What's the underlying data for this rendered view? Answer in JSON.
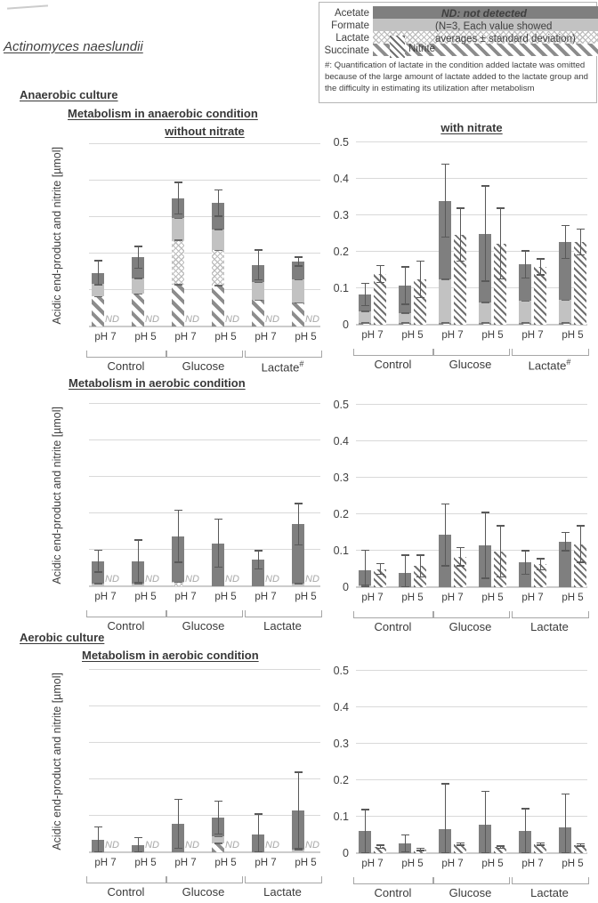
{
  "page_title": "Actinomyces naeslundii",
  "legend": {
    "items": [
      "Acetate",
      "Formate",
      "Lactate",
      "Succinate"
    ],
    "nitrite": "Nitrite",
    "nd_note": "ND: not detected",
    "n_note_line1": "(N=3, Each value showed",
    "n_note_line2": "averages ± standard deviation)",
    "hash_note": "#: Quantification of lactate in the condition added lactate was omitted because of the large amount of lactate added to the lactate group and the difficulty in estimating its utilization after metabolism"
  },
  "headings": {
    "anaerobic_culture": "Anaerobic culture",
    "metabolism_anaerobic": "Metabolism in anaerobic condition",
    "without_nitrate": "without nitrate",
    "with_nitrate": "with nitrate",
    "metabolism_aerobic_row2": "Metabolism in aerobic condition",
    "aerobic_culture": "Aerobic culture",
    "metabolism_aerobic_row3": "Metabolism in aerobic condition"
  },
  "axes": {
    "y_label": "Acidic end-product and nitrite [µmol]",
    "y_ticks": [
      "0",
      "0.1",
      "0.2",
      "0.3",
      "0.4",
      "0.5"
    ],
    "y_max": 0.5,
    "nd": "ND",
    "ph_labels": [
      "pH 7",
      "pH 5"
    ]
  },
  "colors": {
    "acetate": "#7f7f7f",
    "formate": "#c2c2c2",
    "lactate_pattern": "#bdbdbd",
    "succinate_pattern": "#8c8c8c",
    "nitrite_pattern": "#6f6f6f",
    "gridline": "#d9d9d9",
    "error_bar": "#595959",
    "nd_text": "#a9a9a9"
  },
  "chart_data": [
    {
      "id": "anaerobic-culture-anaerobic-condition-without-nitrate",
      "type": "bar",
      "title": "without nitrate",
      "ylim": [
        0,
        0.5
      ],
      "show_y_ticks": false,
      "show_y_label": true,
      "groups": [
        {
          "label": "Control",
          "sup": "",
          "bars": [
            {
              "ph": "pH 7",
              "acid": {
                "succinate": 0.082,
                "formate": 0.035,
                "acetate": 0.03
              },
              "acid_err": 0.181,
              "nitrite": null,
              "nitrite_err": null
            },
            {
              "ph": "pH 5",
              "acid": {
                "succinate": 0.09,
                "formate": 0.042,
                "acetate": 0.058
              },
              "acid_err": 0.22,
              "nitrite": null,
              "nitrite_err": null
            }
          ]
        },
        {
          "label": "Glucose",
          "sup": "",
          "bars": [
            {
              "ph": "pH 7",
              "acid": {
                "succinate": 0.115,
                "lactate": 0.122,
                "formate": 0.06,
                "acetate": 0.055
              },
              "acid_err": 0.395,
              "nitrite": null,
              "nitrite_err": null
            },
            {
              "ph": "pH 5",
              "acid": {
                "succinate": 0.113,
                "lactate": 0.096,
                "formate": 0.058,
                "acetate": 0.071
              },
              "acid_err": 0.374,
              "nitrite": null,
              "nitrite_err": null
            }
          ]
        },
        {
          "label": "Lactate",
          "sup": "#",
          "bars": [
            {
              "ph": "pH 7",
              "acid": {
                "succinate": 0.073,
                "formate": 0.048,
                "acetate": 0.048
              },
              "acid_err": 0.21,
              "nitrite": null,
              "nitrite_err": null
            },
            {
              "ph": "pH 5",
              "acid": {
                "succinate": 0.065,
                "formate": 0.064,
                "acetate": 0.049
              },
              "acid_err": 0.19,
              "nitrite": null,
              "nitrite_err": null
            }
          ]
        }
      ]
    },
    {
      "id": "anaerobic-culture-anaerobic-condition-with-nitrate",
      "type": "bar",
      "title": "with nitrate",
      "ylim": [
        0,
        0.5
      ],
      "show_y_ticks": true,
      "show_y_label": false,
      "groups": [
        {
          "label": "Control",
          "sup": "",
          "bars": [
            {
              "ph": "pH 7",
              "acid": {
                "succinate": 0.005,
                "formate": 0.032,
                "acetate": 0.046
              },
              "acid_err": 0.113,
              "nitrite": 0.139,
              "nitrite_err": 0.162
            },
            {
              "ph": "pH 5",
              "acid": {
                "succinate": 0.005,
                "formate": 0.027,
                "acetate": 0.075
              },
              "acid_err": 0.158,
              "nitrite": 0.125,
              "nitrite_err": 0.175
            }
          ]
        },
        {
          "label": "Glucose",
          "sup": "",
          "bars": [
            {
              "ph": "pH 7",
              "acid": {
                "succinate": 0.005,
                "formate": 0.12,
                "acetate": 0.215
              },
              "acid_err": 0.44,
              "nitrite": 0.247,
              "nitrite_err": 0.32
            },
            {
              "ph": "pH 5",
              "acid": {
                "succinate": 0.005,
                "formate": 0.057,
                "acetate": 0.188
              },
              "acid_err": 0.38,
              "nitrite": 0.223,
              "nitrite_err": 0.32
            }
          ]
        },
        {
          "label": "Lactate",
          "sup": "#",
          "bars": [
            {
              "ph": "pH 7",
              "acid": {
                "succinate": 0.005,
                "formate": 0.06,
                "acetate": 0.1
              },
              "acid_err": 0.202,
              "nitrite": 0.159,
              "nitrite_err": 0.181
            },
            {
              "ph": "pH 5",
              "acid": {
                "succinate": 0.005,
                "formate": 0.063,
                "acetate": 0.159
              },
              "acid_err": 0.272,
              "nitrite": 0.227,
              "nitrite_err": 0.262
            }
          ]
        }
      ]
    },
    {
      "id": "anaerobic-culture-aerobic-condition-left",
      "type": "bar",
      "title": null,
      "ylim": [
        0,
        0.5
      ],
      "show_y_ticks": false,
      "show_y_label": true,
      "groups": [
        {
          "label": "Control",
          "sup": "",
          "bars": [
            {
              "ph": "pH 7",
              "acid": {
                "formate": 0.008,
                "acetate": 0.061
              },
              "acid_err": 0.099,
              "nitrite": null,
              "nitrite_err": null
            },
            {
              "ph": "pH 5",
              "acid": {
                "formate": 0.008,
                "acetate": 0.061
              },
              "acid_err": 0.127,
              "nitrite": null,
              "nitrite_err": null
            }
          ]
        },
        {
          "label": "Glucose",
          "sup": "",
          "bars": [
            {
              "ph": "pH 7",
              "acid": {
                "lactate": 0.012,
                "acetate": 0.125
              },
              "acid_err": 0.208,
              "nitrite": null,
              "nitrite_err": null
            },
            {
              "ph": "pH 5",
              "acid": {
                "acetate": 0.118
              },
              "acid_err": 0.184,
              "nitrite": null,
              "nitrite_err": null
            }
          ]
        },
        {
          "label": "Lactate",
          "sup": "",
          "bars": [
            {
              "ph": "pH 7",
              "acid": {
                "acetate": 0.072
              },
              "acid_err": 0.097,
              "nitrite": null,
              "nitrite_err": null
            },
            {
              "ph": "pH 5",
              "acid": {
                "formate": 0.008,
                "acetate": 0.162
              },
              "acid_err": 0.227,
              "nitrite": null,
              "nitrite_err": null
            }
          ]
        }
      ]
    },
    {
      "id": "anaerobic-culture-aerobic-condition-right",
      "type": "bar",
      "title": null,
      "ylim": [
        0,
        0.5
      ],
      "show_y_ticks": true,
      "show_y_label": false,
      "groups": [
        {
          "label": "Control",
          "sup": "",
          "bars": [
            {
              "ph": "pH 7",
              "acid": {
                "formate": 0.005,
                "acetate": 0.042
              },
              "acid_err": 0.101,
              "nitrite": 0.05,
              "nitrite_err": 0.065
            },
            {
              "ph": "pH 5",
              "acid": {
                "acetate": 0.04
              },
              "acid_err": 0.088,
              "nitrite": 0.058,
              "nitrite_err": 0.088
            }
          ]
        },
        {
          "label": "Glucose",
          "sup": "",
          "bars": [
            {
              "ph": "pH 7",
              "acid": {
                "acetate": 0.143
              },
              "acid_err": 0.228,
              "nitrite": 0.083,
              "nitrite_err": 0.108
            },
            {
              "ph": "pH 5",
              "acid": {
                "acetate": 0.115
              },
              "acid_err": 0.205,
              "nitrite": 0.098,
              "nitrite_err": 0.168
            }
          ]
        },
        {
          "label": "Lactate",
          "sup": "",
          "bars": [
            {
              "ph": "pH 7",
              "acid": {
                "acetate": 0.068
              },
              "acid_err": 0.1,
              "nitrite": 0.063,
              "nitrite_err": 0.078
            },
            {
              "ph": "pH 5",
              "acid": {
                "acetate": 0.125
              },
              "acid_err": 0.15,
              "nitrite": 0.118,
              "nitrite_err": 0.168
            }
          ]
        }
      ]
    },
    {
      "id": "aerobic-culture-aerobic-condition-left",
      "type": "bar",
      "title": null,
      "ylim": [
        0,
        0.5
      ],
      "show_y_ticks": false,
      "show_y_label": true,
      "groups": [
        {
          "label": "Control",
          "sup": "",
          "bars": [
            {
              "ph": "pH 7",
              "acid": {
                "acetate": 0.035
              },
              "acid_err": 0.07,
              "nitrite": null,
              "nitrite_err": null
            },
            {
              "ph": "pH 5",
              "acid": {
                "acetate": 0.02
              },
              "acid_err": 0.04,
              "nitrite": null,
              "nitrite_err": null
            }
          ]
        },
        {
          "label": "Glucose",
          "sup": "",
          "bars": [
            {
              "ph": "pH 7",
              "acid": {
                "acetate": 0.078
              },
              "acid_err": 0.145,
              "nitrite": null,
              "nitrite_err": null
            },
            {
              "ph": "pH 5",
              "acid": {
                "succinate": 0.025,
                "formate": 0.018,
                "acetate": 0.052
              },
              "acid_err": 0.14,
              "nitrite": null,
              "nitrite_err": null
            }
          ]
        },
        {
          "label": "Lactate",
          "sup": "",
          "bars": [
            {
              "ph": "pH 7",
              "acid": {
                "acetate": 0.05
              },
              "acid_err": 0.105,
              "nitrite": null,
              "nitrite_err": null
            },
            {
              "ph": "pH 5",
              "acid": {
                "formate": 0.008,
                "acetate": 0.107
              },
              "acid_err": 0.22,
              "nitrite": null,
              "nitrite_err": null
            }
          ]
        }
      ]
    },
    {
      "id": "aerobic-culture-aerobic-condition-right",
      "type": "bar",
      "title": null,
      "ylim": [
        0,
        0.5
      ],
      "show_y_ticks": true,
      "show_y_label": false,
      "groups": [
        {
          "label": "Control",
          "sup": "",
          "bars": [
            {
              "ph": "pH 7",
              "acid": {
                "acetate": 0.06
              },
              "acid_err": 0.12,
              "nitrite": 0.018,
              "nitrite_err": 0.022
            },
            {
              "ph": "pH 5",
              "acid": {
                "acetate": 0.027
              },
              "acid_err": 0.05,
              "nitrite": 0.01,
              "nitrite_err": 0.013
            }
          ]
        },
        {
          "label": "Glucose",
          "sup": "",
          "bars": [
            {
              "ph": "pH 7",
              "acid": {
                "acetate": 0.065
              },
              "acid_err": 0.19,
              "nitrite": 0.025,
              "nitrite_err": 0.028
            },
            {
              "ph": "pH 5",
              "acid": {
                "acetate": 0.078
              },
              "acid_err": 0.17,
              "nitrite": 0.017,
              "nitrite_err": 0.02
            }
          ]
        },
        {
          "label": "Lactate",
          "sup": "",
          "bars": [
            {
              "ph": "pH 7",
              "acid": {
                "acetate": 0.06
              },
              "acid_err": 0.122,
              "nitrite": 0.025,
              "nitrite_err": 0.028
            },
            {
              "ph": "pH 5",
              "acid": {
                "acetate": 0.07
              },
              "acid_err": 0.162,
              "nitrite": 0.023,
              "nitrite_err": 0.026
            }
          ]
        }
      ]
    }
  ]
}
